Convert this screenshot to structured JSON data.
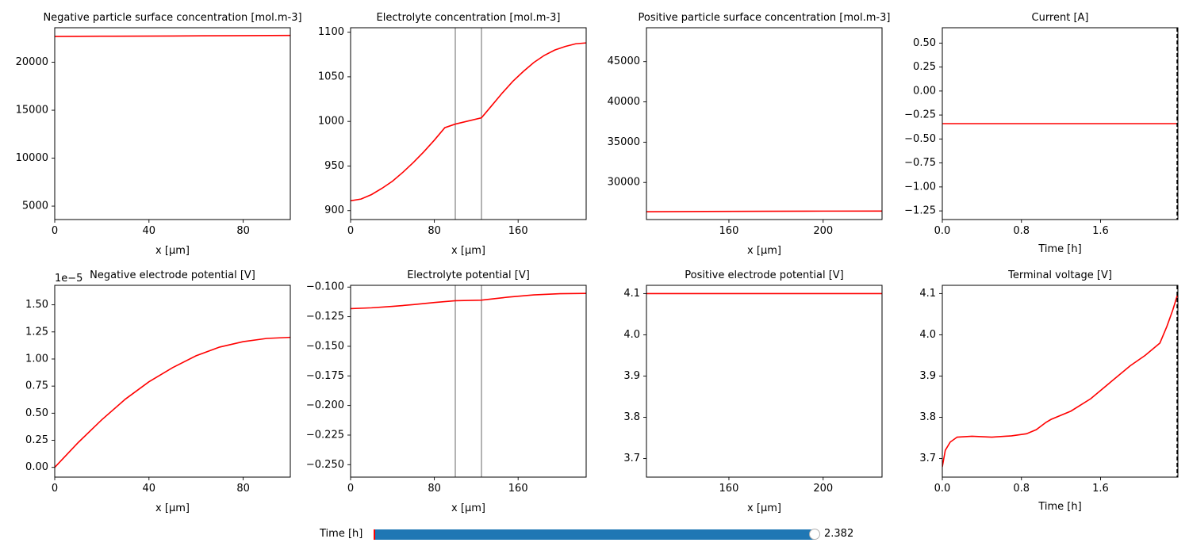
{
  "chart_data": [
    {
      "type": "line",
      "title": "Negative particle surface concentration [mol.m-3]",
      "xlabel": "x [μm]",
      "ylabel": "",
      "xlim": [
        0,
        100
      ],
      "ylim": [
        3600,
        23600
      ],
      "xticks": [
        0,
        40,
        80
      ],
      "yticks": [
        5000,
        10000,
        15000,
        20000
      ],
      "series": [
        {
          "color": "#ff0000",
          "x": [
            0,
            25,
            50,
            75,
            100
          ],
          "y": [
            22700,
            22720,
            22740,
            22770,
            22800
          ]
        }
      ],
      "vlines": [],
      "time_marker": null,
      "offset_label": ""
    },
    {
      "type": "line",
      "title": "Electrolyte concentration [mol.m-3]",
      "xlabel": "x [μm]",
      "ylabel": "",
      "xlim": [
        0,
        225
      ],
      "ylim": [
        890,
        1105
      ],
      "xticks": [
        0,
        80,
        160
      ],
      "yticks": [
        900,
        950,
        1000,
        1050,
        1100
      ],
      "series": [
        {
          "color": "#ff0000",
          "x": [
            0,
            10,
            20,
            30,
            40,
            50,
            60,
            70,
            80,
            90,
            100,
            125,
            135,
            145,
            155,
            165,
            175,
            185,
            195,
            205,
            215,
            225
          ],
          "y": [
            911,
            913,
            918,
            925,
            933,
            943,
            954,
            966,
            979,
            993,
            997,
            1004,
            1018,
            1032,
            1045,
            1056,
            1066,
            1074,
            1080,
            1084,
            1087,
            1088
          ]
        }
      ],
      "vlines": [
        100,
        125
      ],
      "time_marker": null,
      "offset_label": ""
    },
    {
      "type": "line",
      "title": "Positive particle surface concentration [mol.m-3]",
      "xlabel": "x [μm]",
      "ylabel": "",
      "xlim": [
        125,
        225
      ],
      "ylim": [
        25400,
        49200
      ],
      "xticks": [
        160,
        200
      ],
      "yticks": [
        30000,
        35000,
        40000,
        45000
      ],
      "series": [
        {
          "color": "#ff0000",
          "x": [
            125,
            150,
            175,
            200,
            225
          ],
          "y": [
            26370,
            26400,
            26430,
            26445,
            26450
          ]
        }
      ],
      "vlines": [],
      "time_marker": null,
      "offset_label": ""
    },
    {
      "type": "line",
      "title": "Current [A]",
      "xlabel": "Time [h]",
      "ylabel": "",
      "xlim": [
        0,
        2.382
      ],
      "ylim": [
        -1.34,
        0.66
      ],
      "xticks": [
        0.0,
        0.8,
        1.6
      ],
      "xticklabels": [
        "0.0",
        "0.8",
        "1.6"
      ],
      "yticks": [
        -1.25,
        -1.0,
        -0.75,
        -0.5,
        -0.25,
        0.0,
        0.25,
        0.5
      ],
      "yticklabels": [
        "−1.25",
        "−1.00",
        "−0.75",
        "−0.50",
        "−0.25",
        "0.00",
        "0.25",
        "0.50"
      ],
      "series": [
        {
          "color": "#ff0000",
          "x": [
            0,
            2.382
          ],
          "y": [
            -0.34,
            -0.34
          ]
        }
      ],
      "vlines": [],
      "time_marker": 2.382,
      "offset_label": ""
    },
    {
      "type": "line",
      "title": "Negative electrode potential [V]",
      "xlabel": "x [μm]",
      "ylabel": "",
      "xlim": [
        0,
        100
      ],
      "ylim": [
        -0.09,
        1.68
      ],
      "xticks": [
        0,
        40,
        80
      ],
      "yticks": [
        0.0,
        0.25,
        0.5,
        0.75,
        1.0,
        1.25,
        1.5
      ],
      "yticklabels": [
        "0.00",
        "0.25",
        "0.50",
        "0.75",
        "1.00",
        "1.25",
        "1.50"
      ],
      "series": [
        {
          "color": "#ff0000",
          "x": [
            0,
            10,
            20,
            30,
            40,
            50,
            60,
            70,
            80,
            90,
            100
          ],
          "y": [
            0.0,
            0.23,
            0.44,
            0.63,
            0.79,
            0.92,
            1.03,
            1.11,
            1.16,
            1.19,
            1.2
          ]
        }
      ],
      "vlines": [],
      "time_marker": null,
      "offset_label": "1e−5"
    },
    {
      "type": "line",
      "title": "Electrolyte potential [V]",
      "xlabel": "x [μm]",
      "ylabel": "",
      "xlim": [
        0,
        225
      ],
      "ylim": [
        -0.2605,
        -0.0985
      ],
      "xticks": [
        0,
        80,
        160
      ],
      "yticks": [
        -0.25,
        -0.225,
        -0.2,
        -0.175,
        -0.15,
        -0.125,
        -0.1
      ],
      "yticklabels": [
        "−0.250",
        "−0.225",
        "−0.200",
        "−0.175",
        "−0.150",
        "−0.125",
        "−0.100"
      ],
      "series": [
        {
          "color": "#ff0000",
          "x": [
            0,
            20,
            40,
            60,
            80,
            100,
            125,
            150,
            175,
            200,
            225
          ],
          "y": [
            -0.1182,
            -0.1175,
            -0.1163,
            -0.1148,
            -0.113,
            -0.1115,
            -0.111,
            -0.1085,
            -0.1066,
            -0.1056,
            -0.1053
          ]
        }
      ],
      "vlines": [
        100,
        125
      ],
      "time_marker": null,
      "offset_label": ""
    },
    {
      "type": "line",
      "title": "Positive electrode potential [V]",
      "xlabel": "x [μm]",
      "ylabel": "",
      "xlim": [
        125,
        225
      ],
      "ylim": [
        3.655,
        4.12
      ],
      "xticks": [
        160,
        200
      ],
      "yticks": [
        3.7,
        3.8,
        3.9,
        4.0,
        4.1
      ],
      "yticklabels": [
        "3.7",
        "3.8",
        "3.9",
        "4.0",
        "4.1"
      ],
      "series": [
        {
          "color": "#ff0000",
          "x": [
            125,
            225
          ],
          "y": [
            4.1,
            4.1
          ]
        }
      ],
      "vlines": [],
      "time_marker": null,
      "offset_label": ""
    },
    {
      "type": "line",
      "title": "Terminal voltage [V]",
      "xlabel": "Time [h]",
      "ylabel": "",
      "xlim": [
        0,
        2.382
      ],
      "ylim": [
        3.655,
        4.12
      ],
      "xticks": [
        0.0,
        0.8,
        1.6
      ],
      "xticklabels": [
        "0.0",
        "0.8",
        "1.6"
      ],
      "yticks": [
        3.7,
        3.8,
        3.9,
        4.0,
        4.1
      ],
      "yticklabels": [
        "3.7",
        "3.8",
        "3.9",
        "4.0",
        "4.1"
      ],
      "series": [
        {
          "color": "#ff0000",
          "x": [
            0,
            0.03,
            0.08,
            0.15,
            0.3,
            0.5,
            0.7,
            0.85,
            0.95,
            1.05,
            1.1,
            1.3,
            1.5,
            1.7,
            1.9,
            2.05,
            2.2,
            2.27,
            2.33,
            2.382
          ],
          "y": [
            3.68,
            3.72,
            3.74,
            3.752,
            3.754,
            3.752,
            3.755,
            3.76,
            3.77,
            3.788,
            3.795,
            3.815,
            3.845,
            3.885,
            3.925,
            3.95,
            3.98,
            4.02,
            4.06,
            4.1
          ]
        }
      ],
      "vlines": [],
      "time_marker": 2.382,
      "offset_label": ""
    }
  ],
  "slider": {
    "label": "Time [h]",
    "value_text": "2.382",
    "min": 0,
    "max": 2.382,
    "value": 2.382,
    "fill_color": "#1f77b4",
    "init_color": "#ff0000"
  },
  "colors": {
    "line": "#ff0000",
    "separator": "#808080",
    "time_marker": "#000000"
  }
}
